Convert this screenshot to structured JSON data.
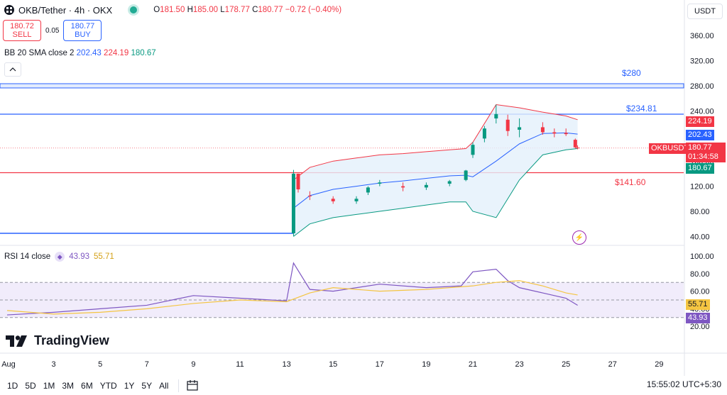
{
  "header": {
    "title": "OKB/Tether · 4h · OKX",
    "o_label": "O",
    "o": "181.50",
    "h_label": "H",
    "h": "185.00",
    "l_label": "L",
    "l": "178.77",
    "c_label": "C",
    "c": "180.77",
    "chg": "−0.72 (−0.40%)"
  },
  "trade": {
    "sell_price": "180.72",
    "sell_label": "SELL",
    "spread": "0.05",
    "buy_price": "180.77",
    "buy_label": "BUY"
  },
  "indicators": {
    "bb": {
      "label": "BB 20 SMA close 2",
      "basis": "202.43",
      "upper": "224.19",
      "lower": "180.67"
    },
    "rsi": {
      "label": "RSI 14 close",
      "rsi": "43.93",
      "ma": "55.71"
    }
  },
  "currency": "USDT",
  "price_axis": {
    "ticks": [
      "360.00",
      "320.00",
      "280.00",
      "240.00",
      "200.00",
      "160.00",
      "120.00",
      "80.00",
      "40.00"
    ]
  },
  "rsi_axis": {
    "ticks": [
      "100.00",
      "80.00",
      "60.00",
      "40.00",
      "20.00"
    ]
  },
  "price_labels": {
    "upper": "224.19",
    "basis": "202.43",
    "symbol": "OKBUSDT",
    "last": "180.77",
    "countdown": "01:34:58",
    "lower": "180.67",
    "rsi_ma": "55.71",
    "rsi": "43.93"
  },
  "levels": [
    {
      "label": "$280",
      "value": 280,
      "color": "#2962ff"
    },
    {
      "label": "$234.81",
      "value": 234.81,
      "color": "#2962ff"
    },
    {
      "label": "$141.60",
      "value": 141.6,
      "color": "#f23645"
    }
  ],
  "x_axis": {
    "ticks": [
      "Aug",
      "3",
      "5",
      "7",
      "9",
      "11",
      "13",
      "15",
      "17",
      "19",
      "21",
      "23",
      "25",
      "27",
      "29"
    ]
  },
  "watermark": "TradingView",
  "ranges": [
    "1D",
    "5D",
    "1M",
    "3M",
    "6M",
    "YTD",
    "1Y",
    "5Y",
    "All"
  ],
  "clock": "15:55:02 UTC+5:30",
  "colors": {
    "up": "#089981",
    "down": "#f23645",
    "basis": "#2962ff",
    "rsi": "#7e57c2",
    "rsi_ma": "#f4c542"
  },
  "chart_data": {
    "type": "candlestick",
    "price": [
      {
        "day": 13.3,
        "o": 45,
        "h": 146,
        "l": 40,
        "c": 140
      },
      {
        "day": 13.5,
        "o": 140,
        "h": 138,
        "l": 110,
        "c": 115
      },
      {
        "day": 14,
        "o": 105,
        "h": 112,
        "l": 98,
        "c": 104
      },
      {
        "day": 15,
        "o": 100,
        "h": 104,
        "l": 92,
        "c": 96
      },
      {
        "day": 16,
        "o": 96,
        "h": 104,
        "l": 92,
        "c": 100
      },
      {
        "day": 16.5,
        "o": 110,
        "h": 120,
        "l": 106,
        "c": 118
      },
      {
        "day": 17,
        "o": 124,
        "h": 130,
        "l": 120,
        "c": 126
      },
      {
        "day": 18,
        "o": 120,
        "h": 126,
        "l": 112,
        "c": 118
      },
      {
        "day": 19,
        "o": 118,
        "h": 126,
        "l": 114,
        "c": 122
      },
      {
        "day": 20,
        "o": 124,
        "h": 130,
        "l": 120,
        "c": 128
      },
      {
        "day": 20.7,
        "o": 130,
        "h": 146,
        "l": 128,
        "c": 145
      },
      {
        "day": 21,
        "o": 170,
        "h": 190,
        "l": 165,
        "c": 186
      },
      {
        "day": 21.5,
        "o": 196,
        "h": 216,
        "l": 190,
        "c": 212
      },
      {
        "day": 22,
        "o": 228,
        "h": 250,
        "l": 220,
        "c": 235
      },
      {
        "day": 22.5,
        "o": 226,
        "h": 234,
        "l": 200,
        "c": 208
      },
      {
        "day": 23,
        "o": 210,
        "h": 228,
        "l": 198,
        "c": 214
      },
      {
        "day": 24,
        "o": 214,
        "h": 222,
        "l": 202,
        "c": 206
      },
      {
        "day": 24.5,
        "o": 206,
        "h": 212,
        "l": 198,
        "c": 204
      },
      {
        "day": 25,
        "o": 205,
        "h": 212,
        "l": 200,
        "c": 203
      },
      {
        "day": 25.4,
        "o": 194,
        "h": 196,
        "l": 180,
        "c": 182
      },
      {
        "day": 25.5,
        "o": 181.5,
        "h": 185,
        "l": 178.77,
        "c": 180.77
      }
    ],
    "rsi": [
      {
        "day": 1,
        "v": 33
      },
      {
        "day": 3,
        "v": 36
      },
      {
        "day": 5,
        "v": 40
      },
      {
        "day": 7,
        "v": 44
      },
      {
        "day": 9,
        "v": 55
      },
      {
        "day": 11,
        "v": 52
      },
      {
        "day": 13,
        "v": 49
      },
      {
        "day": 13.3,
        "v": 92
      },
      {
        "day": 14,
        "v": 62
      },
      {
        "day": 15,
        "v": 60
      },
      {
        "day": 17,
        "v": 68
      },
      {
        "day": 19,
        "v": 64
      },
      {
        "day": 20.5,
        "v": 66
      },
      {
        "day": 21,
        "v": 82
      },
      {
        "day": 22,
        "v": 85
      },
      {
        "day": 22.5,
        "v": 72
      },
      {
        "day": 23,
        "v": 64
      },
      {
        "day": 24,
        "v": 58
      },
      {
        "day": 25,
        "v": 52
      },
      {
        "day": 25.5,
        "v": 43.93
      }
    ],
    "rsi_ma": [
      {
        "day": 1,
        "v": 38
      },
      {
        "day": 3,
        "v": 34
      },
      {
        "day": 5,
        "v": 36
      },
      {
        "day": 7,
        "v": 40
      },
      {
        "day": 9,
        "v": 46
      },
      {
        "day": 11,
        "v": 50
      },
      {
        "day": 13,
        "v": 48
      },
      {
        "day": 14,
        "v": 58
      },
      {
        "day": 15,
        "v": 64
      },
      {
        "day": 17,
        "v": 60
      },
      {
        "day": 19,
        "v": 62
      },
      {
        "day": 21,
        "v": 66
      },
      {
        "day": 22,
        "v": 70
      },
      {
        "day": 23,
        "v": 72
      },
      {
        "day": 24,
        "v": 66
      },
      {
        "day": 25,
        "v": 58
      },
      {
        "day": 25.5,
        "v": 55.71
      }
    ],
    "rsi_band": {
      "upper": 70,
      "lower": 30
    }
  }
}
